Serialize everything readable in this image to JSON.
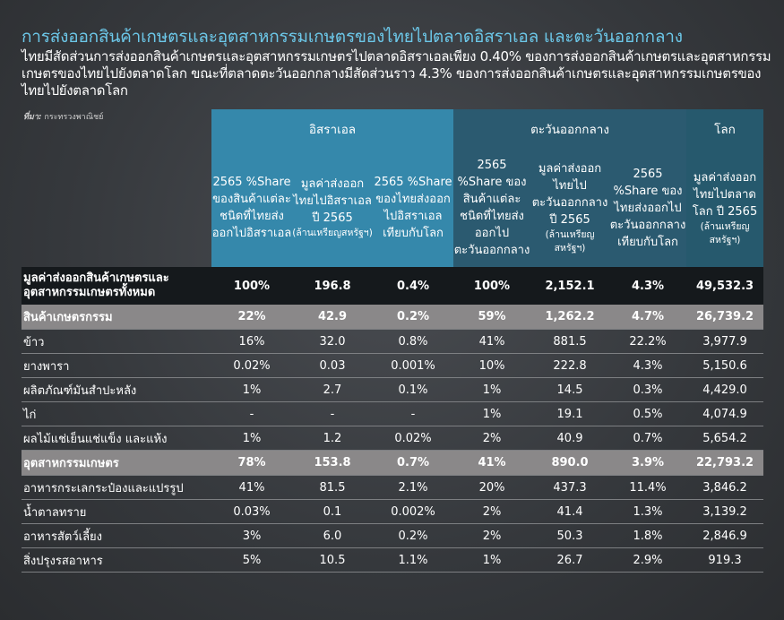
{
  "title": "การส่งออกสินค้าเกษตรและอุตสาหกรรมเกษตรของไทยไปตลาดอิสราเอล และตะวันออกกลาง",
  "subtitle": "ไทยมีสัดส่วนการส่งออกสินค้าเกษตรและอุตสาหกรรมเกษตรไปตลาดอิสราเอลเพียง 0.40% ของการส่งออกสินค้าเกษตรและอุตสาหกรรมเกษตรของไทยไปยังตลาดโลก ขณะที่ตลาดตะวันออกกลางมีสัดส่วนราว 4.3% ของการส่งออกสินค้าเกษตรและอุตสาหกรรมเกษตรของไทยไปยังตลาดโลก",
  "source_label": "ที่มา:",
  "source": "กระทรวงพาณิชย์",
  "groups": {
    "israel": "อิสราเอล",
    "middle_east": "ตะวันออกกลาง",
    "world": "โลก"
  },
  "headers": {
    "h1": "2565 %Share ของสินค้าแต่ละชนิดที่ไทยส่งออกไปอิสราเอล",
    "h2": "มูลค่าส่งออกไทยไปอิสราเอล ปี 2565",
    "h2_unit": "(ล้านเหรียญสหรัฐฯ)",
    "h3": "2565 %Share ของไทยส่งออกไปอิสราเอลเทียบกับโลก",
    "h4": "2565 %Share ของสินค้าแต่ละชนิดที่ไทยส่งออกไปตะวันออกกลาง",
    "h5": "มูลค่าส่งออกไทยไปตะวันออกกลาง ปี 2565",
    "h5_unit": "(ล้านเหรียญสหรัฐฯ)",
    "h6": "2565 %Share ของไทยส่งออกไปตะวันออกกลางเทียบกับโลก",
    "h7": "มูลค่าส่งออกไทยไปตลาดโลก ปี 2565",
    "h7_unit": "(ล้านเหรียญสหรัฐฯ)"
  },
  "rows": [
    {
      "type": "total",
      "name": "มูลค่าส่งออกสินค้าเกษตรและอุตสาหกรรมเกษตรทั้งหมด",
      "v": [
        "100%",
        "196.8",
        "0.4%",
        "100%",
        "2,152.1",
        "4.3%",
        "49,532.3"
      ]
    },
    {
      "type": "cat",
      "name": "สินค้าเกษตรกรรม",
      "v": [
        "22%",
        "42.9",
        "0.2%",
        "59%",
        "1,262.2",
        "4.7%",
        "26,739.2"
      ]
    },
    {
      "type": "item",
      "name": "ข้าว",
      "v": [
        "16%",
        "32.0",
        "0.8%",
        "41%",
        "881.5",
        "22.2%",
        "3,977.9"
      ]
    },
    {
      "type": "item",
      "name": "ยางพารา",
      "v": [
        "0.02%",
        "0.03",
        "0.001%",
        "10%",
        "222.8",
        "4.3%",
        "5,150.6"
      ]
    },
    {
      "type": "item",
      "name": "ผลิตภัณฑ์มันสำปะหลัง",
      "v": [
        "1%",
        "2.7",
        "0.1%",
        "1%",
        "14.5",
        "0.3%",
        "4,429.0"
      ]
    },
    {
      "type": "item",
      "name": "ไก่",
      "v": [
        "-",
        "-",
        "-",
        "1%",
        "19.1",
        "0.5%",
        "4,074.9"
      ]
    },
    {
      "type": "item",
      "name": "ผลไม้แช่เย็นแช่แข็ง และแห้ง",
      "v": [
        "1%",
        "1.2",
        "0.02%",
        "2%",
        "40.9",
        "0.7%",
        "5,654.2"
      ]
    },
    {
      "type": "cat",
      "name": "อุตสาหกรรมเกษตร",
      "v": [
        "78%",
        "153.8",
        "0.7%",
        "41%",
        "890.0",
        "3.9%",
        "22,793.2"
      ]
    },
    {
      "type": "item",
      "name": "อาหารกระเลกระป๋องและแปรรูป",
      "v": [
        "41%",
        "81.5",
        "2.1%",
        "20%",
        "437.3",
        "11.4%",
        "3,846.2"
      ]
    },
    {
      "type": "item",
      "name": "น้ำตาลทราย",
      "v": [
        "0.03%",
        "0.1",
        "0.002%",
        "2%",
        "41.4",
        "1.3%",
        "3,139.2"
      ]
    },
    {
      "type": "item",
      "name": "อาหารสัตว์เลี้ยง",
      "v": [
        "3%",
        "6.0",
        "0.2%",
        "2%",
        "50.3",
        "1.8%",
        "2,846.9"
      ]
    },
    {
      "type": "item",
      "name": "สิ่งปรุงรสอาหาร",
      "v": [
        "5%",
        "10.5",
        "1.1%",
        "1%",
        "26.7",
        "2.9%",
        "919.3"
      ]
    }
  ]
}
